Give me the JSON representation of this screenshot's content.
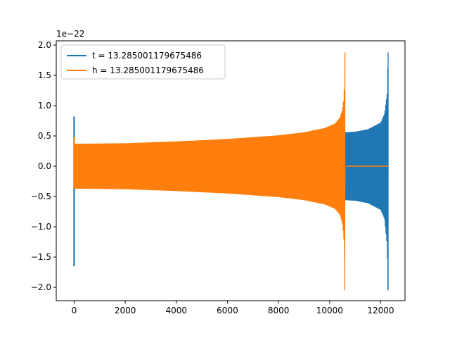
{
  "chart_data": {
    "type": "line",
    "title": "",
    "xlabel": "",
    "ylabel": "",
    "y_offset_label": "1e−22",
    "xlim": [
      -700,
      12950
    ],
    "ylim": [
      -2.22,
      2.07
    ],
    "x_ticks": [
      0,
      2000,
      4000,
      6000,
      8000,
      10000,
      12000
    ],
    "x_tick_labels": [
      "0",
      "2000",
      "4000",
      "6000",
      "8000",
      "10000",
      "12000"
    ],
    "y_ticks": [
      -2.0,
      -1.5,
      -1.0,
      -0.5,
      0.0,
      0.5,
      1.0,
      1.5,
      2.0
    ],
    "y_tick_labels": [
      "−2.0",
      "−1.5",
      "−1.0",
      "−0.5",
      "0.0",
      "0.5",
      "1.0",
      "1.5",
      "2.0"
    ],
    "grid": false,
    "legend_position": "top-left",
    "series": [
      {
        "name": "t = 13.285001179675486",
        "color": "#1f77b4",
        "x_range": [
          0,
          12290
        ],
        "spike_at_start": {
          "x": 0,
          "max": 0.82,
          "min": -1.65
        },
        "envelope": {
          "x": [
            0,
            2000,
            4000,
            6000,
            8000,
            9000,
            10000,
            10500,
            10620,
            11000,
            11500,
            12000,
            12150,
            12250,
            12290
          ],
          "upper": [
            0.37,
            0.37,
            0.39,
            0.42,
            0.46,
            0.49,
            0.53,
            0.55,
            0.56,
            0.57,
            0.61,
            0.72,
            0.87,
            1.2,
            1.88
          ],
          "lower": [
            -0.37,
            -0.37,
            -0.39,
            -0.42,
            -0.46,
            -0.49,
            -0.53,
            -0.55,
            -0.56,
            -0.57,
            -0.61,
            -0.72,
            -0.87,
            -1.3,
            -2.05
          ]
        },
        "tail": {
          "x_from": 12290,
          "x_to": 12290,
          "value": 0.0
        }
      },
      {
        "name": "h = 13.285001179675486",
        "color": "#ff7f0e",
        "x_range": [
          0,
          12290
        ],
        "spike_at_start": {
          "x": 0,
          "max": 0.48,
          "min": -0.37
        },
        "envelope": {
          "x": [
            0,
            2000,
            4000,
            6000,
            8000,
            9000,
            9800,
            10200,
            10400,
            10500,
            10550,
            10580,
            10600
          ],
          "upper": [
            0.37,
            0.38,
            0.41,
            0.45,
            0.51,
            0.56,
            0.63,
            0.7,
            0.8,
            0.93,
            1.1,
            1.35,
            1.88
          ],
          "lower": [
            -0.37,
            -0.38,
            -0.41,
            -0.45,
            -0.51,
            -0.56,
            -0.63,
            -0.7,
            -0.8,
            -0.95,
            -1.15,
            -1.45,
            -2.05
          ]
        },
        "tail": {
          "x_from": 10600,
          "x_to": 12290,
          "value": 0.0
        }
      }
    ]
  }
}
